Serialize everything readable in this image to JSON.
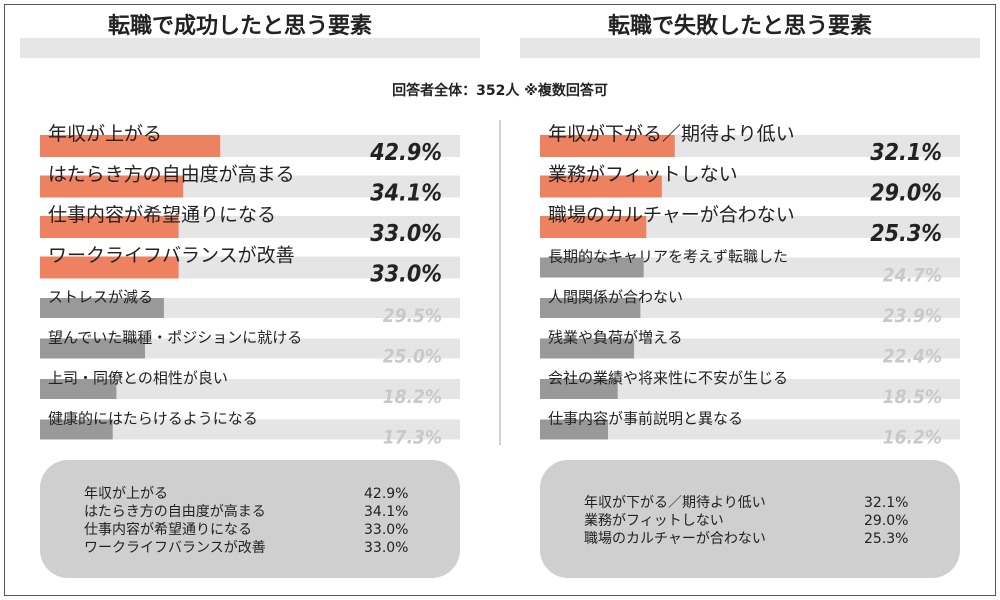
{
  "left_title": "転職で成功したと思う要素",
  "right_title": "転職で失敗したと思う要素",
  "respondents_note": "回答者全体：352人 ※複数回答可",
  "colors": {
    "highlight": "#ee8160",
    "normal": "#999999",
    "track": "#e5e5e5",
    "value_normal": "#c9c9c9",
    "value_highlight": "#222222"
  },
  "chart_data": [
    {
      "type": "bar",
      "orientation": "horizontal",
      "title": "転職で成功したと思う要素",
      "unit": "%",
      "xlim": [
        0,
        100
      ],
      "categories": [
        "年収が上がる",
        "はたらき方の自由度が高まる",
        "仕事内容が希望通りになる",
        "ワークライフバランスが改善",
        "ストレスが減る",
        "望んでいた職種・ポジションに就ける",
        "上司・同僚との相性が良い",
        "健康的にはたらけるようになる"
      ],
      "values": [
        42.9,
        34.1,
        33.0,
        33.0,
        29.5,
        25.0,
        18.2,
        17.3
      ],
      "labels": [
        "42.9%",
        "34.1%",
        "33.0%",
        "33.0%",
        "29.5%",
        "25.0%",
        "18.2%",
        "17.3%"
      ],
      "highlighted": [
        true,
        true,
        true,
        true,
        false,
        false,
        false,
        false
      ]
    },
    {
      "type": "bar",
      "orientation": "horizontal",
      "title": "転職で失敗したと思う要素",
      "unit": "%",
      "xlim": [
        0,
        100
      ],
      "categories": [
        "年収が下がる／期待より低い",
        "業務がフィットしない",
        "職場のカルチャーが合わない",
        "長期的なキャリアを考えず転職した",
        "人間関係が合わない",
        "残業や負荷が増える",
        "会社の業績や将来性に不安が生じる",
        "仕事内容が事前説明と異なる"
      ],
      "values": [
        32.1,
        29.0,
        25.3,
        24.7,
        23.9,
        22.4,
        18.5,
        16.2
      ],
      "labels": [
        "32.1%",
        "29.0%",
        "25.3%",
        "24.7%",
        "23.9%",
        "22.4%",
        "18.5%",
        "16.2%"
      ],
      "highlighted": [
        true,
        true,
        true,
        false,
        false,
        false,
        false,
        false
      ]
    }
  ],
  "summary_left": [
    {
      "label": "年収が上がる",
      "value": "42.9%"
    },
    {
      "label": "はたらき方の自由度が高まる",
      "value": "34.1%"
    },
    {
      "label": "仕事内容が希望通りになる",
      "value": "33.0%"
    },
    {
      "label": "ワークライフバランスが改善",
      "value": "33.0%"
    }
  ],
  "summary_right": [
    {
      "label": "年収が下がる／期待より低い",
      "value": "32.1%"
    },
    {
      "label": "業務がフィットしない",
      "value": "29.0%"
    },
    {
      "label": "職場のカルチャーが合わない",
      "value": "25.3%"
    }
  ]
}
